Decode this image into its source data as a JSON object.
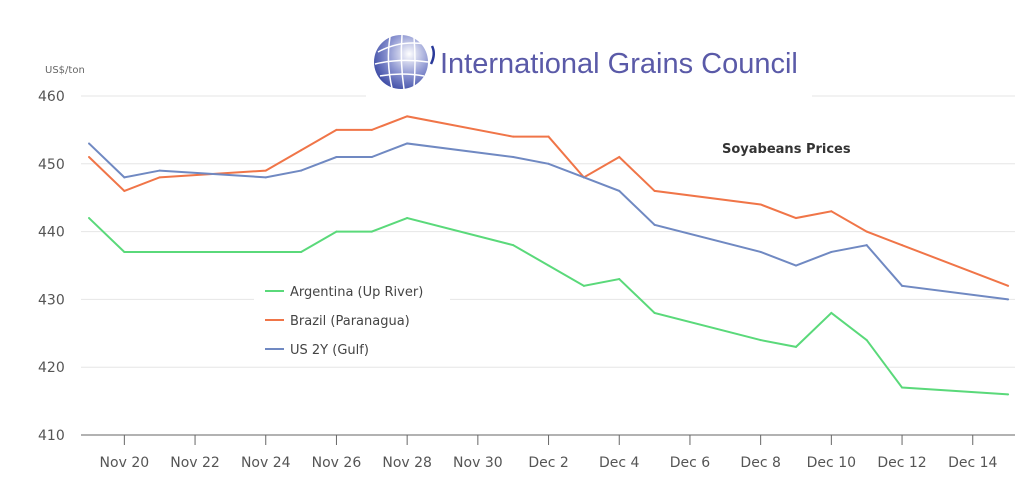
{
  "logo": {
    "text": "International Grains Council"
  },
  "chart_data": {
    "type": "line",
    "title": "Soyabeans Prices",
    "ylabel": "US$/ton",
    "xlabel": "",
    "ylim": [
      410,
      460
    ],
    "yticks": [
      410,
      420,
      430,
      440,
      450,
      460
    ],
    "xlim_day": [
      0,
      26.5
    ],
    "xtick_labels": [
      "Nov 20",
      "Nov 22",
      "Nov 24",
      "Nov 26",
      "Nov 28",
      "Nov 30",
      "Dec 2",
      "Dec 4",
      "Dec 6",
      "Dec 8",
      "Dec 10",
      "Dec 12",
      "Dec 14"
    ],
    "xtick_days": [
      1,
      3,
      5,
      7,
      9,
      11,
      13,
      15,
      17,
      19,
      21,
      23,
      25
    ],
    "x_labels": [
      "Nov 19",
      "Nov 20",
      "Nov 21",
      "Nov 24",
      "Nov 25",
      "Nov 26",
      "Nov 27",
      "Nov 28",
      "Dec 1",
      "Dec 2",
      "Dec 3",
      "Dec 4",
      "Dec 5",
      "Dec 8",
      "Dec 9",
      "Dec 10",
      "Dec 11",
      "Dec 12",
      "Dec 15"
    ],
    "x_days": [
      0,
      1,
      2,
      5,
      6,
      7,
      8,
      9,
      12,
      13,
      14,
      15,
      16,
      19,
      20,
      21,
      22,
      23,
      26
    ],
    "grid": true,
    "legend_position": "center-left",
    "series": [
      {
        "name": "Argentina (Up River)",
        "color": "#5ad97a",
        "values": [
          442,
          437,
          437,
          437,
          437,
          440,
          440,
          442,
          438,
          435,
          432,
          433,
          428,
          424,
          423,
          428,
          424,
          417,
          416
        ]
      },
      {
        "name": "Brazil (Paranagua)",
        "color": "#f07548",
        "values": [
          451,
          446,
          448,
          449,
          452,
          455,
          455,
          457,
          454,
          454,
          448,
          451,
          446,
          444,
          442,
          443,
          440,
          438,
          432
        ]
      },
      {
        "name": "US 2Y (Gulf)",
        "color": "#7089c2",
        "values": [
          453,
          448,
          449,
          448,
          449,
          451,
          451,
          453,
          451,
          450,
          448,
          446,
          441,
          437,
          435,
          437,
          438,
          432,
          430
        ]
      }
    ]
  }
}
